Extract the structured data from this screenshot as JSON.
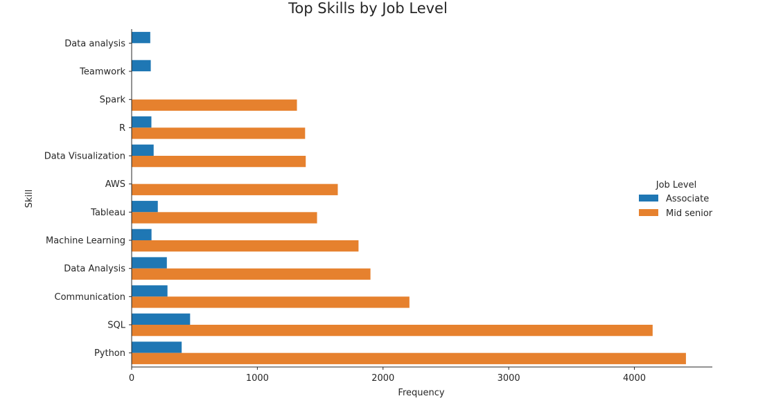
{
  "chart_data": {
    "type": "bar",
    "orientation": "horizontal",
    "title": "Top Skills by Job Level",
    "xlabel": "Frequency",
    "ylabel": "Skill",
    "xlim": [
      0,
      4620
    ],
    "xticks": [
      0,
      1000,
      2000,
      3000,
      4000
    ],
    "categories": [
      "Data analysis",
      "Teamwork",
      "Spark",
      "R",
      "Data Visualization",
      "AWS",
      "Tableau",
      "Machine Learning",
      "Data Analysis",
      "Communication",
      "SQL",
      "Python"
    ],
    "legend_title": "Job Level",
    "legend_position": "right",
    "grid": false,
    "series": [
      {
        "name": "Associate",
        "color": "#1f77b4",
        "values": [
          148,
          152,
          null,
          157,
          175,
          null,
          208,
          158,
          280,
          285,
          465,
          398
        ]
      },
      {
        "name": "Mid senior",
        "color": "#e6812e",
        "values": [
          null,
          null,
          1315,
          1380,
          1385,
          1640,
          1475,
          1805,
          1900,
          2210,
          4145,
          4410
        ]
      }
    ]
  }
}
